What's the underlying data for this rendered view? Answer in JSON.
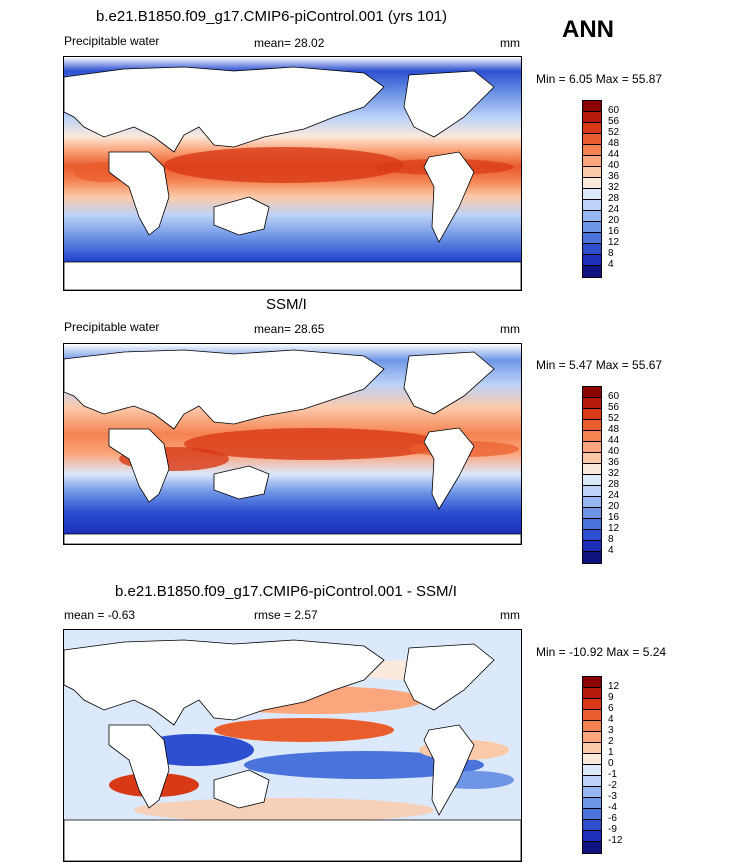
{
  "season": "ANN",
  "panels": [
    {
      "title": "b.e21.B1850.f09_g17.CMIP6-piControl.001 (yrs 101)",
      "left_label": "Precipitable water",
      "center_label": "mean=  28.02",
      "units": "mm",
      "minmax": "Min =   6.05 Max =  55.87",
      "levels": [
        "60",
        "56",
        "52",
        "48",
        "44",
        "40",
        "36",
        "32",
        "28",
        "24",
        "20",
        "16",
        "12",
        "8",
        "4"
      ],
      "colors": [
        "#8b0000",
        "#b51a0a",
        "#d83a17",
        "#ea5d2c",
        "#f58352",
        "#fba67c",
        "#fcc9a9",
        "#fbe9dc",
        "#dce8fb",
        "#bcd2f7",
        "#97b7f0",
        "#6f96e6",
        "#4a73db",
        "#2d4fd0",
        "#1d2fb8",
        "#0e137e"
      ]
    },
    {
      "title": "SSM/I",
      "left_label": "Precipitable water",
      "center_label": "mean=  28.65",
      "units": "mm",
      "minmax": "Min =   5.47 Max =  55.67",
      "levels": [
        "60",
        "56",
        "52",
        "48",
        "44",
        "40",
        "36",
        "32",
        "28",
        "24",
        "20",
        "16",
        "12",
        "8",
        "4"
      ],
      "colors": [
        "#8b0000",
        "#b51a0a",
        "#d83a17",
        "#ea5d2c",
        "#f58352",
        "#fba67c",
        "#fcc9a9",
        "#fbe9dc",
        "#dce8fb",
        "#bcd2f7",
        "#97b7f0",
        "#6f96e6",
        "#4a73db",
        "#2d4fd0",
        "#1d2fb8",
        "#0e137e"
      ]
    },
    {
      "title": "b.e21.B1850.f09_g17.CMIP6-piControl.001 - SSM/I",
      "left_label": "mean =  -0.63",
      "center_label": "rmse =   2.57",
      "units": "mm",
      "minmax": "Min = -10.92 Max =   5.24",
      "levels": [
        "12",
        "9",
        "6",
        "4",
        "3",
        "2",
        "1",
        "0",
        "-1",
        "-2",
        "-3",
        "-4",
        "-6",
        "-9",
        "-12"
      ],
      "colors": [
        "#8b0000",
        "#b51a0a",
        "#d83a17",
        "#ea5d2c",
        "#f58352",
        "#fba67c",
        "#fcc9a9",
        "#fbe9dc",
        "#dce8fb",
        "#bcd2f7",
        "#97b7f0",
        "#6f96e6",
        "#4a73db",
        "#2d4fd0",
        "#1d2fb8",
        "#0e137e"
      ]
    }
  ]
}
